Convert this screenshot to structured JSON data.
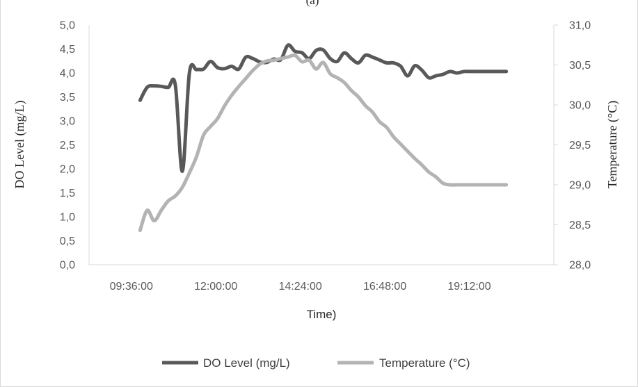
{
  "chart_data": {
    "type": "line",
    "panel_label": "(a)",
    "xlabel": "Time)",
    "ylabel_left": "DO Level  (mg/L)",
    "ylabel_right": "Temperature (°C)",
    "x_ticks": [
      "09:36:00",
      "12:00:00",
      "14:24:00",
      "16:48:00",
      "19:12:00"
    ],
    "xlim": [
      "08:24:00",
      "21:36:00"
    ],
    "y_left_ticks": [
      "0,0",
      "0,5",
      "1,0",
      "1,5",
      "2,0",
      "2,5",
      "3,0",
      "3,5",
      "4,0",
      "4,5",
      "5,0"
    ],
    "y_right_ticks": [
      "28,0",
      "28,5",
      "29,0",
      "29,5",
      "30,0",
      "30,5",
      "31,0"
    ],
    "ylim_left": [
      0,
      5
    ],
    "ylim_right": [
      28,
      31
    ],
    "grid": false,
    "legend_position": "bottom",
    "series": [
      {
        "name": "DO Level (mg/L)",
        "axis": "left",
        "color": "#595959",
        "x": [
          "09:51",
          "10:03",
          "10:15",
          "10:27",
          "10:39",
          "10:51",
          "11:03",
          "11:15",
          "11:27",
          "11:39",
          "11:51",
          "12:03",
          "12:15",
          "12:27",
          "12:39",
          "12:51",
          "13:03",
          "13:15",
          "13:27",
          "13:39",
          "13:51",
          "14:03",
          "14:15",
          "14:27",
          "14:39",
          "14:51",
          "15:03",
          "15:15",
          "15:27",
          "15:39",
          "15:51",
          "16:03",
          "16:15",
          "16:27",
          "16:39",
          "16:51",
          "17:03",
          "17:15",
          "17:27",
          "17:39",
          "17:51",
          "18:03",
          "18:15",
          "18:27",
          "18:39",
          "18:51",
          "19:03",
          "19:15",
          "19:27",
          "19:39",
          "19:51",
          "20:03",
          "20:15"
        ],
        "values": [
          3.43,
          3.7,
          3.73,
          3.72,
          3.7,
          3.75,
          1.95,
          4.0,
          4.07,
          4.08,
          4.24,
          4.11,
          4.09,
          4.14,
          4.08,
          4.33,
          4.3,
          4.23,
          4.22,
          4.29,
          4.28,
          4.58,
          4.45,
          4.42,
          4.3,
          4.47,
          4.48,
          4.3,
          4.24,
          4.42,
          4.3,
          4.21,
          4.37,
          4.33,
          4.27,
          4.21,
          4.21,
          4.14,
          3.94,
          4.15,
          4.06,
          3.9,
          3.94,
          3.97,
          4.03,
          4.0,
          4.03,
          4.03,
          4.03,
          4.03,
          4.03,
          4.03,
          4.03
        ]
      },
      {
        "name": "Temperature (°C)",
        "axis": "right",
        "color": "#b3b3b3",
        "x": [
          "09:51",
          "10:03",
          "10:15",
          "10:27",
          "10:39",
          "10:51",
          "11:03",
          "11:15",
          "11:27",
          "11:39",
          "11:51",
          "12:03",
          "12:15",
          "12:27",
          "12:39",
          "12:51",
          "13:03",
          "13:15",
          "13:27",
          "13:39",
          "13:51",
          "14:03",
          "14:15",
          "14:27",
          "14:39",
          "14:51",
          "15:03",
          "15:15",
          "15:27",
          "15:39",
          "15:51",
          "16:03",
          "16:15",
          "16:27",
          "16:39",
          "16:51",
          "17:03",
          "17:15",
          "17:27",
          "17:39",
          "17:51",
          "18:03",
          "18:15",
          "18:27",
          "18:39",
          "18:51",
          "19:03",
          "19:15",
          "19:27",
          "19:39",
          "19:51",
          "20:03",
          "20:15"
        ],
        "values": [
          28.43,
          28.68,
          28.55,
          28.68,
          28.8,
          28.86,
          28.97,
          29.15,
          29.35,
          29.62,
          29.73,
          29.83,
          29.99,
          30.12,
          30.23,
          30.33,
          30.43,
          30.51,
          30.55,
          30.56,
          30.58,
          30.6,
          30.62,
          30.54,
          30.56,
          30.45,
          30.53,
          30.39,
          30.34,
          30.28,
          30.18,
          30.1,
          29.99,
          29.91,
          29.79,
          29.72,
          29.6,
          29.51,
          29.42,
          29.33,
          29.25,
          29.16,
          29.1,
          29.02,
          29.0,
          29.0,
          29.0,
          29.0,
          29.0,
          29.0,
          29.0,
          29.0,
          29.0
        ]
      }
    ]
  }
}
